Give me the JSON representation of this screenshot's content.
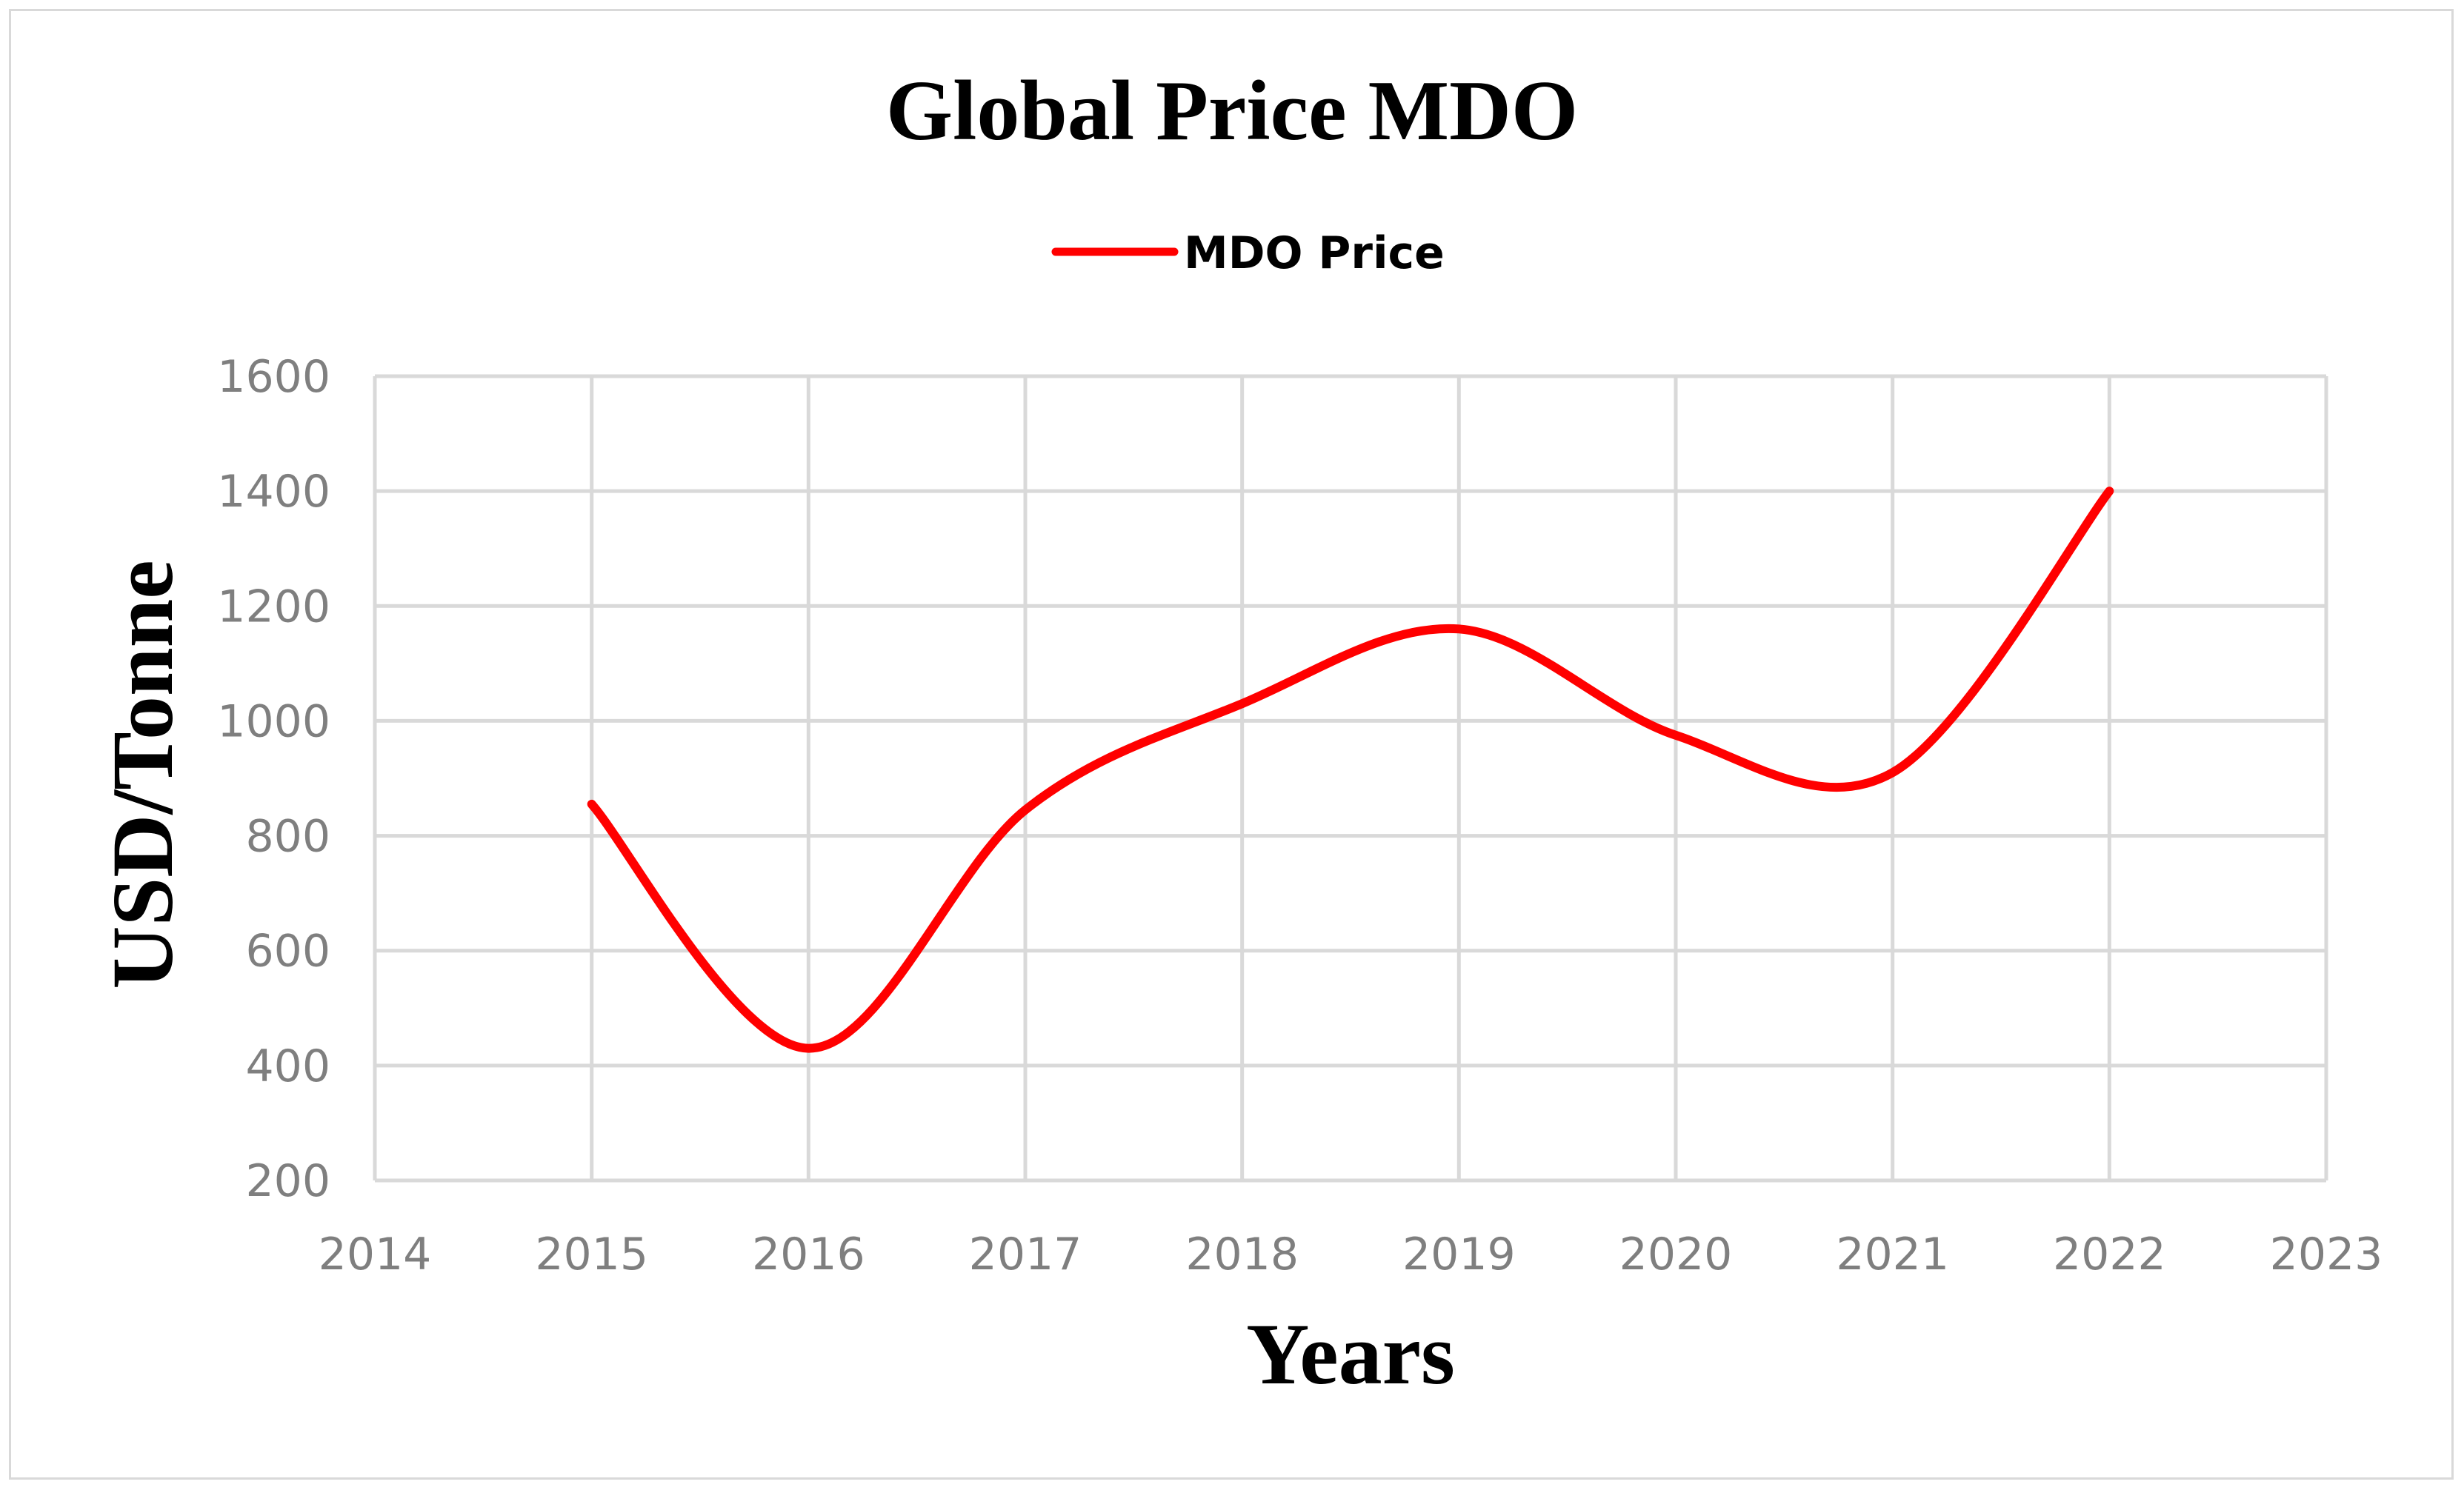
{
  "chart_data": {
    "type": "line",
    "title": "Global Price MDO",
    "xlabel": "Years",
    "ylabel": "USD/Tonne",
    "xlim": [
      2014,
      2023
    ],
    "ylim": [
      200,
      1600
    ],
    "x_ticks": [
      2014,
      2015,
      2016,
      2017,
      2018,
      2019,
      2020,
      2021,
      2022,
      2023
    ],
    "y_ticks": [
      200,
      400,
      600,
      800,
      1000,
      1200,
      1400,
      1600
    ],
    "grid": true,
    "smooth": true,
    "legend_position": "top-center",
    "series": [
      {
        "name": "MDO Price",
        "color": "#ff0000",
        "x": [
          2015,
          2016,
          2017,
          2018,
          2019,
          2020,
          2021,
          2022
        ],
        "values": [
          855,
          430,
          845,
          1030,
          1160,
          975,
          910,
          1400
        ]
      }
    ]
  }
}
